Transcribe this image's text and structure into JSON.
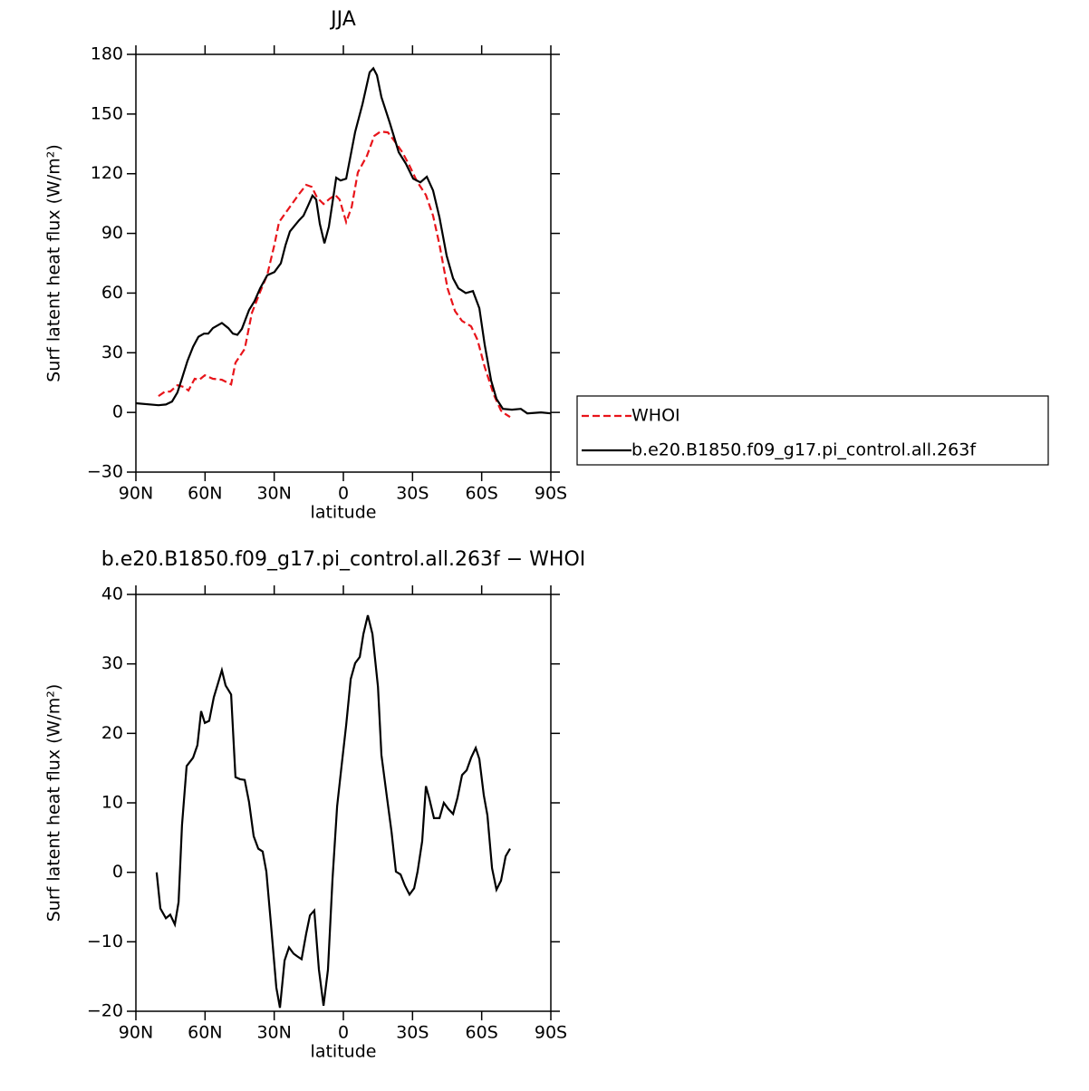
{
  "chart_data": [
    {
      "type": "line",
      "title": "JJA",
      "xlabel": "latitude",
      "ylabel": "Surf latent heat flux (W/m²)",
      "xlim": [
        90,
        -90
      ],
      "xticks": [
        {
          "value": 90,
          "label": "90N"
        },
        {
          "value": 60,
          "label": "60N"
        },
        {
          "value": 30,
          "label": "30N"
        },
        0,
        {
          "value": -30,
          "label": "30S"
        },
        {
          "value": -60,
          "label": "60S"
        },
        {
          "value": -90,
          "label": "90S"
        }
      ],
      "ylim": [
        -30,
        180
      ],
      "yticks": [
        {
          "value": -30,
          "label": "−30"
        },
        0,
        30,
        60,
        90,
        120,
        150,
        180
      ],
      "legend": "right",
      "series": [
        {
          "name": "WHOI",
          "color": "#e8141a",
          "dashed": true,
          "x": [
            80.2,
            77.4,
            75.1,
            72,
            69.2,
            67.2,
            64.5,
            62.5,
            60.1,
            56.6,
            52.7,
            48.7,
            46.8,
            42.8,
            39.7,
            36.1,
            33,
            29.9,
            27.9,
            23.2,
            19.2,
            16.1,
            13.7,
            11.4,
            8.6,
            5.9,
            3.5,
            1.6,
            -1.2,
            -3.6,
            -6.3,
            -10.2,
            -13.4,
            -16.1,
            -19.3,
            -22,
            -25.6,
            -28.7,
            -31.9,
            -35.8,
            -38.9,
            -41.7,
            -45.2,
            -48.4,
            -51.5,
            -55.4,
            -58.2,
            -61.3,
            -65.3,
            -68.4,
            -70.4,
            -72.3
          ],
          "values": [
            8.2,
            10.5,
            10.5,
            13.7,
            12.8,
            11,
            16.9,
            16.4,
            18.7,
            16.9,
            16.4,
            14.1,
            25,
            31.9,
            50,
            60.6,
            69.2,
            84.3,
            95.7,
            103.4,
            109.8,
            114.4,
            113.4,
            108,
            104.8,
            107.5,
            109.3,
            107,
            95.7,
            103.4,
            120.7,
            129,
            139,
            141.2,
            140.8,
            136.7,
            130.8,
            124,
            116.2,
            109.3,
            98.9,
            84.3,
            62.4,
            51,
            46,
            43.3,
            36.4,
            22.8,
            8.7,
            0.9,
            -0.9,
            -2.3
          ]
        },
        {
          "name": "b.e20.B1850.f09_g17.pi_control.all.263f",
          "color": "#000000",
          "dashed": false,
          "x": [
            90,
            80.2,
            77,
            74.3,
            72,
            70.3,
            67.6,
            65.2,
            62.9,
            60.5,
            58.6,
            56.6,
            52.7,
            49.9,
            47.9,
            46,
            44,
            40.9,
            38.5,
            36.1,
            33,
            29.9,
            27.1,
            25.1,
            23.2,
            19.2,
            17.3,
            15.3,
            13.4,
            11.8,
            10.2,
            8.2,
            6.3,
            3.1,
            1.2,
            -1.2,
            -5.1,
            -8.3,
            -11.4,
            -13,
            -14.6,
            -16.5,
            -20.1,
            -24,
            -27.1,
            -30.3,
            -33.4,
            -36.2,
            -38.9,
            -41.7,
            -44.8,
            -47.6,
            -49.9,
            -53.1,
            -56.2,
            -59,
            -61.3,
            -64.1,
            -66.4,
            -69.2,
            -73.1,
            -77,
            -79.8,
            -85.7,
            -90
          ],
          "values": [
            4.6,
            3.6,
            4,
            5.5,
            10,
            16,
            26,
            33,
            38,
            39.6,
            39.6,
            42.4,
            45,
            42.4,
            39.6,
            39,
            42,
            51.5,
            56,
            62.4,
            69,
            70.6,
            75,
            84,
            91,
            96.6,
            98.9,
            104,
            109,
            107,
            94.8,
            85,
            93.4,
            118,
            116.6,
            117.5,
            141,
            155,
            171,
            173,
            169.5,
            158.5,
            145.8,
            130.8,
            125,
            117.5,
            115.7,
            118.5,
            111.6,
            98,
            78.8,
            67.4,
            62.4,
            60,
            61,
            52.4,
            34,
            16,
            6.8,
            1.8,
            1.4,
            1.8,
            -0.5,
            0,
            -0.5
          ]
        }
      ]
    },
    {
      "type": "line",
      "title": "b.e20.B1850.f09_g17.pi_control.all.263f − WHOI",
      "xlabel": "latitude",
      "ylabel": "Surf latent heat flux (W/m²)",
      "xlim": [
        90,
        -90
      ],
      "xticks": [
        {
          "value": 90,
          "label": "90N"
        },
        {
          "value": 60,
          "label": "60N"
        },
        {
          "value": 30,
          "label": "30N"
        },
        0,
        {
          "value": -30,
          "label": "30S"
        },
        {
          "value": -60,
          "label": "60S"
        },
        {
          "value": -90,
          "label": "90S"
        }
      ],
      "ylim": [
        -20,
        40
      ],
      "yticks": [
        {
          "value": -20,
          "label": "−20"
        },
        {
          "value": -10,
          "label": "−10"
        },
        0,
        10,
        20,
        30,
        40
      ],
      "color": "#000000",
      "x": [
        81,
        79.4,
        77,
        75.1,
        73.1,
        71.5,
        70,
        68,
        65.2,
        63.3,
        61.7,
        60.1,
        58.2,
        56.2,
        54.2,
        52.7,
        51.1,
        48.7,
        46.8,
        44.8,
        42.8,
        40.9,
        38.9,
        36.9,
        35,
        33.4,
        31.4,
        29.1,
        27.5,
        25.5,
        23.6,
        21.6,
        20,
        18.1,
        16.1,
        14.5,
        12.6,
        10.6,
        8.6,
        6.7,
        4.7,
        2.7,
        0.8,
        -1.2,
        -3.2,
        -5.1,
        -7.1,
        -8.7,
        -10.6,
        -12.6,
        -15,
        -16.5,
        -18.9,
        -20.9,
        -22.8,
        -24.8,
        -26.7,
        -28.7,
        -30.7,
        -32.2,
        -34.2,
        -35.8,
        -37.3,
        -39.3,
        -41.7,
        -43.6,
        -45.6,
        -47.6,
        -49.5,
        -51.5,
        -53.5,
        -55.4,
        -57.4,
        -59,
        -60.9,
        -62.5,
        -64.5,
        -66.4,
        -68.4,
        -70.4,
        -72.3
      ],
      "values": [
        0,
        -5.2,
        -6.6,
        -6.1,
        -7.5,
        -4.3,
        6.8,
        15.3,
        16.5,
        18.3,
        23.2,
        21.5,
        21.8,
        25.2,
        27.4,
        29.1,
        26.9,
        25.6,
        13.7,
        13.4,
        13.3,
        10.1,
        5.2,
        3.4,
        3,
        0.1,
        -7.5,
        -16.6,
        -19.5,
        -12.7,
        -10.8,
        -11.7,
        -12.1,
        -12.5,
        -8.8,
        -6.2,
        -5.5,
        -14,
        -19.2,
        -14,
        -1,
        9.5,
        15.3,
        21.2,
        27.8,
        30.1,
        31,
        34.3,
        37,
        34.3,
        26.7,
        16.9,
        10.8,
        5.8,
        0.1,
        -0.3,
        -1.9,
        -3.2,
        -2.3,
        0.1,
        4.5,
        12.4,
        10.6,
        7.8,
        7.8,
        10,
        9.1,
        8.4,
        10.7,
        14,
        14.7,
        16.5,
        17.9,
        16.3,
        11.1,
        8.2,
        0.6,
        -2.5,
        -1.2,
        2.3,
        3.4
      ]
    }
  ]
}
